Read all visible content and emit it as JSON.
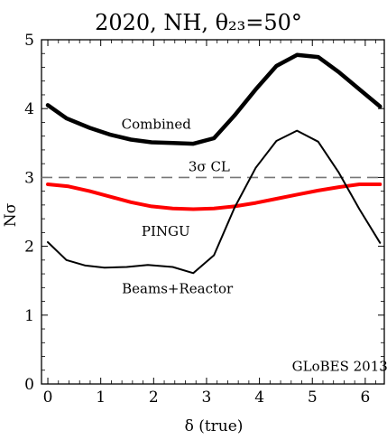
{
  "chart_data": {
    "type": "line",
    "title": "2020, NH, θ₂₃=50°",
    "xlabel": "δ (true)",
    "ylabel": "Nσ",
    "xlim": [
      -0.12,
      6.36
    ],
    "ylim": [
      0,
      5
    ],
    "xticks": [
      0,
      1,
      2,
      3,
      4,
      5,
      6
    ],
    "yticks": [
      0,
      1,
      2,
      3,
      4,
      5
    ],
    "grid": false,
    "series": [
      {
        "name": "Combined",
        "color": "#000000",
        "style": "thick",
        "x": [
          0,
          0.35,
          0.79,
          1.19,
          1.57,
          1.96,
          2.36,
          2.75,
          3.14,
          3.53,
          3.93,
          4.32,
          4.71,
          5.11,
          5.5,
          5.89,
          6.28
        ],
        "y": [
          4.05,
          3.86,
          3.72,
          3.62,
          3.55,
          3.51,
          3.5,
          3.49,
          3.57,
          3.9,
          4.28,
          4.62,
          4.78,
          4.75,
          4.53,
          4.28,
          4.03
        ]
      },
      {
        "name": "PINGU",
        "color": "#ff0000",
        "style": "thick",
        "x": [
          0,
          0.39,
          0.79,
          1.18,
          1.57,
          1.96,
          2.36,
          2.75,
          3.14,
          3.53,
          3.93,
          4.32,
          4.71,
          5.11,
          5.5,
          5.89,
          6.28
        ],
        "y": [
          2.9,
          2.87,
          2.8,
          2.72,
          2.64,
          2.58,
          2.55,
          2.54,
          2.55,
          2.58,
          2.63,
          2.69,
          2.75,
          2.81,
          2.86,
          2.9,
          2.9
        ]
      },
      {
        "name": "Beams+Reactor",
        "color": "#000000",
        "style": "thin",
        "x": [
          0,
          0.35,
          0.71,
          1.07,
          1.49,
          1.89,
          2.36,
          2.75,
          3.14,
          3.53,
          3.93,
          4.32,
          4.71,
          5.11,
          5.5,
          5.89,
          6.28
        ],
        "y": [
          2.06,
          1.8,
          1.72,
          1.69,
          1.7,
          1.73,
          1.7,
          1.61,
          1.87,
          2.56,
          3.14,
          3.53,
          3.68,
          3.52,
          3.07,
          2.54,
          2.05
        ]
      }
    ],
    "reference_line": {
      "label": "3σ CL",
      "y": 3,
      "style": "dashed",
      "color": "#777777"
    },
    "annotations": {
      "combined": {
        "text": "Combined",
        "x": 2.05,
        "y": 3.71
      },
      "pingu": {
        "text": "PINGU",
        "x": 2.23,
        "y": 2.15,
        "color": "#ff0000"
      },
      "beams": {
        "text": "Beams+Reactor",
        "x": 2.45,
        "y": 1.32
      },
      "cl": {
        "text": "3σ CL",
        "x": 3.05,
        "y": 3.09
      },
      "credit": {
        "text": "GLoBES 2013",
        "x": 5.52,
        "y": 0.19
      }
    }
  }
}
